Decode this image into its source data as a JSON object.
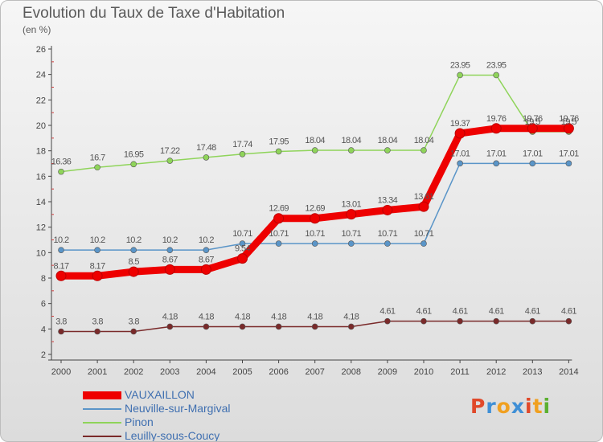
{
  "header": {
    "title": "Evolution du Taux de Taxe d'Habitation",
    "unit": "(en %)"
  },
  "logo": {
    "letters": [
      "P",
      "r",
      "o",
      "x",
      "i",
      "t",
      "i"
    ],
    "colors": [
      "#e0492a",
      "#3f8fd6",
      "#f0a020",
      "#3f8fd6",
      "#e0492a",
      "#f0a020",
      "#5bb030"
    ]
  },
  "chart_data": {
    "type": "line",
    "title": "Evolution du Taux de Taxe d'Habitation",
    "ylabel": "(en %)",
    "xlabel": "",
    "ylim": [
      2,
      26
    ],
    "yticks": [
      2,
      4,
      6,
      8,
      10,
      12,
      14,
      16,
      18,
      20,
      22,
      24,
      26
    ],
    "grid": false,
    "legend_position": "bottom-left",
    "x": [
      "2000",
      "2001",
      "2002",
      "2003",
      "2004",
      "2005",
      "2006",
      "2007",
      "2008",
      "2009",
      "2010",
      "2011",
      "2012",
      "2013",
      "2014"
    ],
    "series": [
      {
        "name": "VAUXAILLON",
        "color": "#ee0000",
        "style": "thick",
        "values": [
          8.17,
          8.17,
          8.5,
          8.67,
          8.67,
          9.54,
          12.69,
          12.69,
          13.01,
          13.34,
          13.61,
          19.37,
          19.76,
          19.76,
          19.76
        ],
        "labels": [
          "8.17",
          "8.17",
          "8.5",
          "8.67",
          "8.67",
          "9.54",
          "12.69",
          "12.69",
          "13.01",
          "13.34",
          "13.61",
          "19.37",
          "19.76",
          "19.76",
          "19.76"
        ]
      },
      {
        "name": "Neuville-sur-Margival",
        "color": "#5a95c8",
        "style": "thin",
        "values": [
          10.2,
          10.2,
          10.2,
          10.2,
          10.2,
          10.71,
          10.71,
          10.71,
          10.71,
          10.71,
          10.71,
          17.01,
          17.01,
          17.01,
          17.01
        ],
        "labels": [
          "10.2",
          "10.2",
          "10.2",
          "10.2",
          "10.2",
          "10.71",
          "10.71",
          "10.71",
          "10.71",
          "10.71",
          "10.71",
          "17.01",
          "17.01",
          "17.01",
          "17.01"
        ]
      },
      {
        "name": "Pinon",
        "color": "#8fd45a",
        "style": "thin",
        "values": [
          16.36,
          16.7,
          16.95,
          17.22,
          17.48,
          17.74,
          17.95,
          18.04,
          18.04,
          18.04,
          18.04,
          23.95,
          23.95,
          19.5,
          19.5
        ],
        "labels": [
          "16.36",
          "16.7",
          "16.95",
          "17.22",
          "17.48",
          "17.74",
          "17.95",
          "18.04",
          "18.04",
          "18.04",
          "18.04",
          "23.95",
          "23.95",
          "19.5",
          "19.5"
        ]
      },
      {
        "name": "Leuilly-sous-Coucy",
        "color": "#7a2a2a",
        "style": "thin",
        "values": [
          3.8,
          3.8,
          3.8,
          4.18,
          4.18,
          4.18,
          4.18,
          4.18,
          4.18,
          4.61,
          4.61,
          4.61,
          4.61,
          4.61,
          4.61
        ],
        "labels": [
          "3.8",
          "3.8",
          "3.8",
          "4.18",
          "4.18",
          "4.18",
          "4.18",
          "4.18",
          "4.18",
          "4.61",
          "4.61",
          "4.61",
          "4.61",
          "4.61",
          "4.61"
        ]
      }
    ]
  }
}
